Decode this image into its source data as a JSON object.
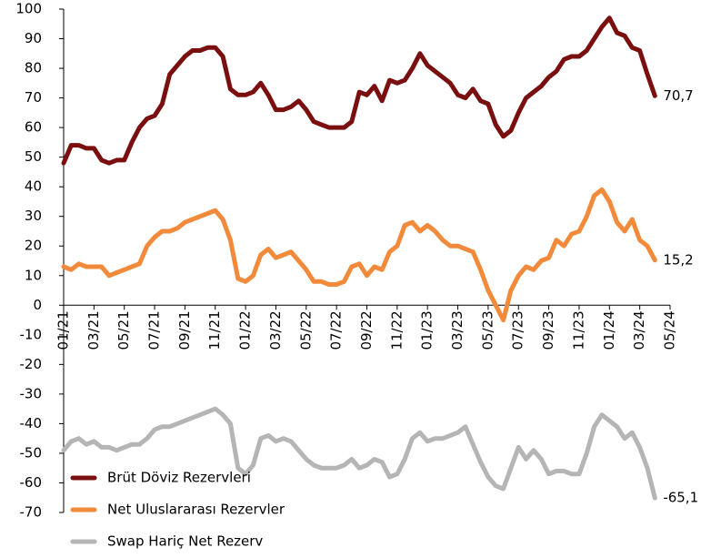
{
  "chart_data": {
    "type": "line",
    "categories": [
      "01/21",
      null,
      null,
      null,
      "03/21",
      null,
      null,
      null,
      "05/21",
      null,
      null,
      null,
      "07/21",
      null,
      null,
      null,
      "09/21",
      null,
      null,
      null,
      "11/21",
      null,
      null,
      null,
      "01/22",
      null,
      null,
      null,
      "03/22",
      null,
      null,
      null,
      "05/22",
      null,
      null,
      null,
      "07/22",
      null,
      null,
      null,
      "09/22",
      null,
      null,
      null,
      "11/22",
      null,
      null,
      null,
      "01/23",
      null,
      null,
      null,
      "03/23",
      null,
      null,
      null,
      "05/23",
      null,
      null,
      null,
      "07/23",
      null,
      null,
      null,
      "09/23",
      null,
      null,
      null,
      "11/23",
      null,
      null,
      null,
      "01/24",
      null,
      null,
      null,
      "03/24",
      null,
      null,
      null,
      "05/24"
    ],
    "series": [
      {
        "name": "Brüt Döviz Rezervleri",
        "color": "#7a0f10",
        "values": [
          48,
          54,
          54,
          53,
          53,
          49,
          48,
          49,
          49,
          55,
          60,
          63,
          64,
          68,
          78,
          81,
          84,
          86,
          86,
          87,
          87,
          84,
          73,
          71,
          71,
          72,
          75,
          71,
          66,
          66,
          67,
          69,
          66,
          62,
          61,
          60,
          60,
          60,
          62,
          72,
          71,
          74,
          69,
          76,
          75,
          76,
          80,
          85,
          81,
          79,
          77,
          75,
          71,
          70,
          73,
          69,
          68,
          61,
          57,
          59,
          65,
          70,
          72,
          74,
          77,
          79,
          83,
          84,
          84,
          86,
          90,
          94,
          97,
          92,
          91,
          87,
          86,
          78,
          70.7,
          null,
          null
        ],
        "value_labels": [
          null,
          null,
          null,
          null,
          null,
          null,
          null,
          null,
          null,
          null,
          null,
          null,
          null,
          null,
          null,
          null,
          null,
          null,
          null,
          null,
          null,
          null,
          null,
          null,
          null,
          null,
          null,
          null,
          null,
          null,
          null,
          null,
          null,
          null,
          null,
          null,
          null,
          null,
          null,
          null,
          null,
          null,
          null,
          null,
          null,
          null,
          null,
          null,
          null,
          null,
          null,
          null,
          null,
          null,
          null,
          null,
          null,
          null,
          null,
          null,
          null,
          null,
          null,
          null,
          null,
          null,
          null,
          null,
          null,
          null,
          null,
          null,
          null,
          null,
          null,
          null,
          null,
          null,
          "70,7",
          null,
          null
        ]
      },
      {
        "name": "Net Uluslararası Rezervler",
        "color": "#f28a3c",
        "values": [
          13,
          12,
          14,
          13,
          13,
          13,
          10,
          11,
          12,
          13,
          14,
          20,
          23,
          25,
          25,
          26,
          28,
          29,
          30,
          31,
          32,
          29,
          22,
          9,
          8,
          10,
          17,
          19,
          16,
          17,
          18,
          15,
          12,
          8,
          8,
          7,
          7,
          8,
          13,
          14,
          10,
          13,
          12,
          18,
          20,
          27,
          28,
          25,
          27,
          25,
          22,
          20,
          20,
          19,
          18,
          12,
          5,
          0,
          -5,
          5,
          10,
          13,
          12,
          15,
          16,
          22,
          20,
          24,
          25,
          30,
          37,
          39,
          35,
          28,
          25,
          29,
          22,
          20,
          15.2,
          null,
          null
        ],
        "value_labels": [
          null,
          null,
          null,
          null,
          null,
          null,
          null,
          null,
          null,
          null,
          null,
          null,
          null,
          null,
          null,
          null,
          null,
          null,
          null,
          null,
          null,
          null,
          null,
          null,
          null,
          null,
          null,
          null,
          null,
          null,
          null,
          null,
          null,
          null,
          null,
          null,
          null,
          null,
          null,
          null,
          null,
          null,
          null,
          null,
          null,
          null,
          null,
          null,
          null,
          null,
          null,
          null,
          null,
          null,
          null,
          null,
          null,
          null,
          null,
          null,
          null,
          null,
          null,
          null,
          null,
          null,
          null,
          null,
          null,
          null,
          null,
          null,
          null,
          null,
          null,
          null,
          null,
          null,
          "15,2",
          null,
          null
        ]
      },
      {
        "name": "Swap Hariç Net Rezerv",
        "color": "#b5b5b5",
        "values": [
          -49,
          -46,
          -45,
          -47,
          -46,
          -48,
          -48,
          -49,
          -48,
          -47,
          -47,
          -45,
          -42,
          -41,
          -41,
          -40,
          -39,
          -38,
          -37,
          -36,
          -35,
          -37,
          -40,
          -55,
          -57,
          -54,
          -45,
          -44,
          -46,
          -45,
          -46,
          -49,
          -52,
          -54,
          -55,
          -55,
          -55,
          -54,
          -52,
          -55,
          -54,
          -52,
          -53,
          -58,
          -57,
          -52,
          -45,
          -43,
          -46,
          -45,
          -45,
          -44,
          -43,
          -41,
          -47,
          -53,
          -58,
          -61,
          -62,
          -55,
          -48,
          -52,
          -49,
          -52,
          -57,
          -56,
          -56,
          -57,
          -57,
          -50,
          -41,
          -37,
          -39,
          -41,
          -45,
          -43,
          -48,
          -55,
          -65.1,
          null,
          null
        ],
        "value_labels": [
          null,
          null,
          null,
          null,
          null,
          null,
          null,
          null,
          null,
          null,
          null,
          null,
          null,
          null,
          null,
          null,
          null,
          null,
          null,
          null,
          null,
          null,
          null,
          null,
          null,
          null,
          null,
          null,
          null,
          null,
          null,
          null,
          null,
          null,
          null,
          null,
          null,
          null,
          null,
          null,
          null,
          null,
          null,
          null,
          null,
          null,
          null,
          null,
          null,
          null,
          null,
          null,
          null,
          null,
          null,
          null,
          null,
          null,
          null,
          null,
          null,
          null,
          null,
          null,
          null,
          null,
          null,
          null,
          null,
          null,
          null,
          null,
          null,
          null,
          null,
          null,
          null,
          null,
          "-65,1",
          null,
          null
        ]
      }
    ],
    "ylim": [
      -70,
      100
    ],
    "yticks": [
      100,
      90,
      80,
      70,
      60,
      50,
      40,
      30,
      20,
      10,
      0,
      -10,
      -20,
      -30,
      -40,
      -50,
      -60,
      -70
    ],
    "grid": false,
    "legend": "lower left"
  }
}
